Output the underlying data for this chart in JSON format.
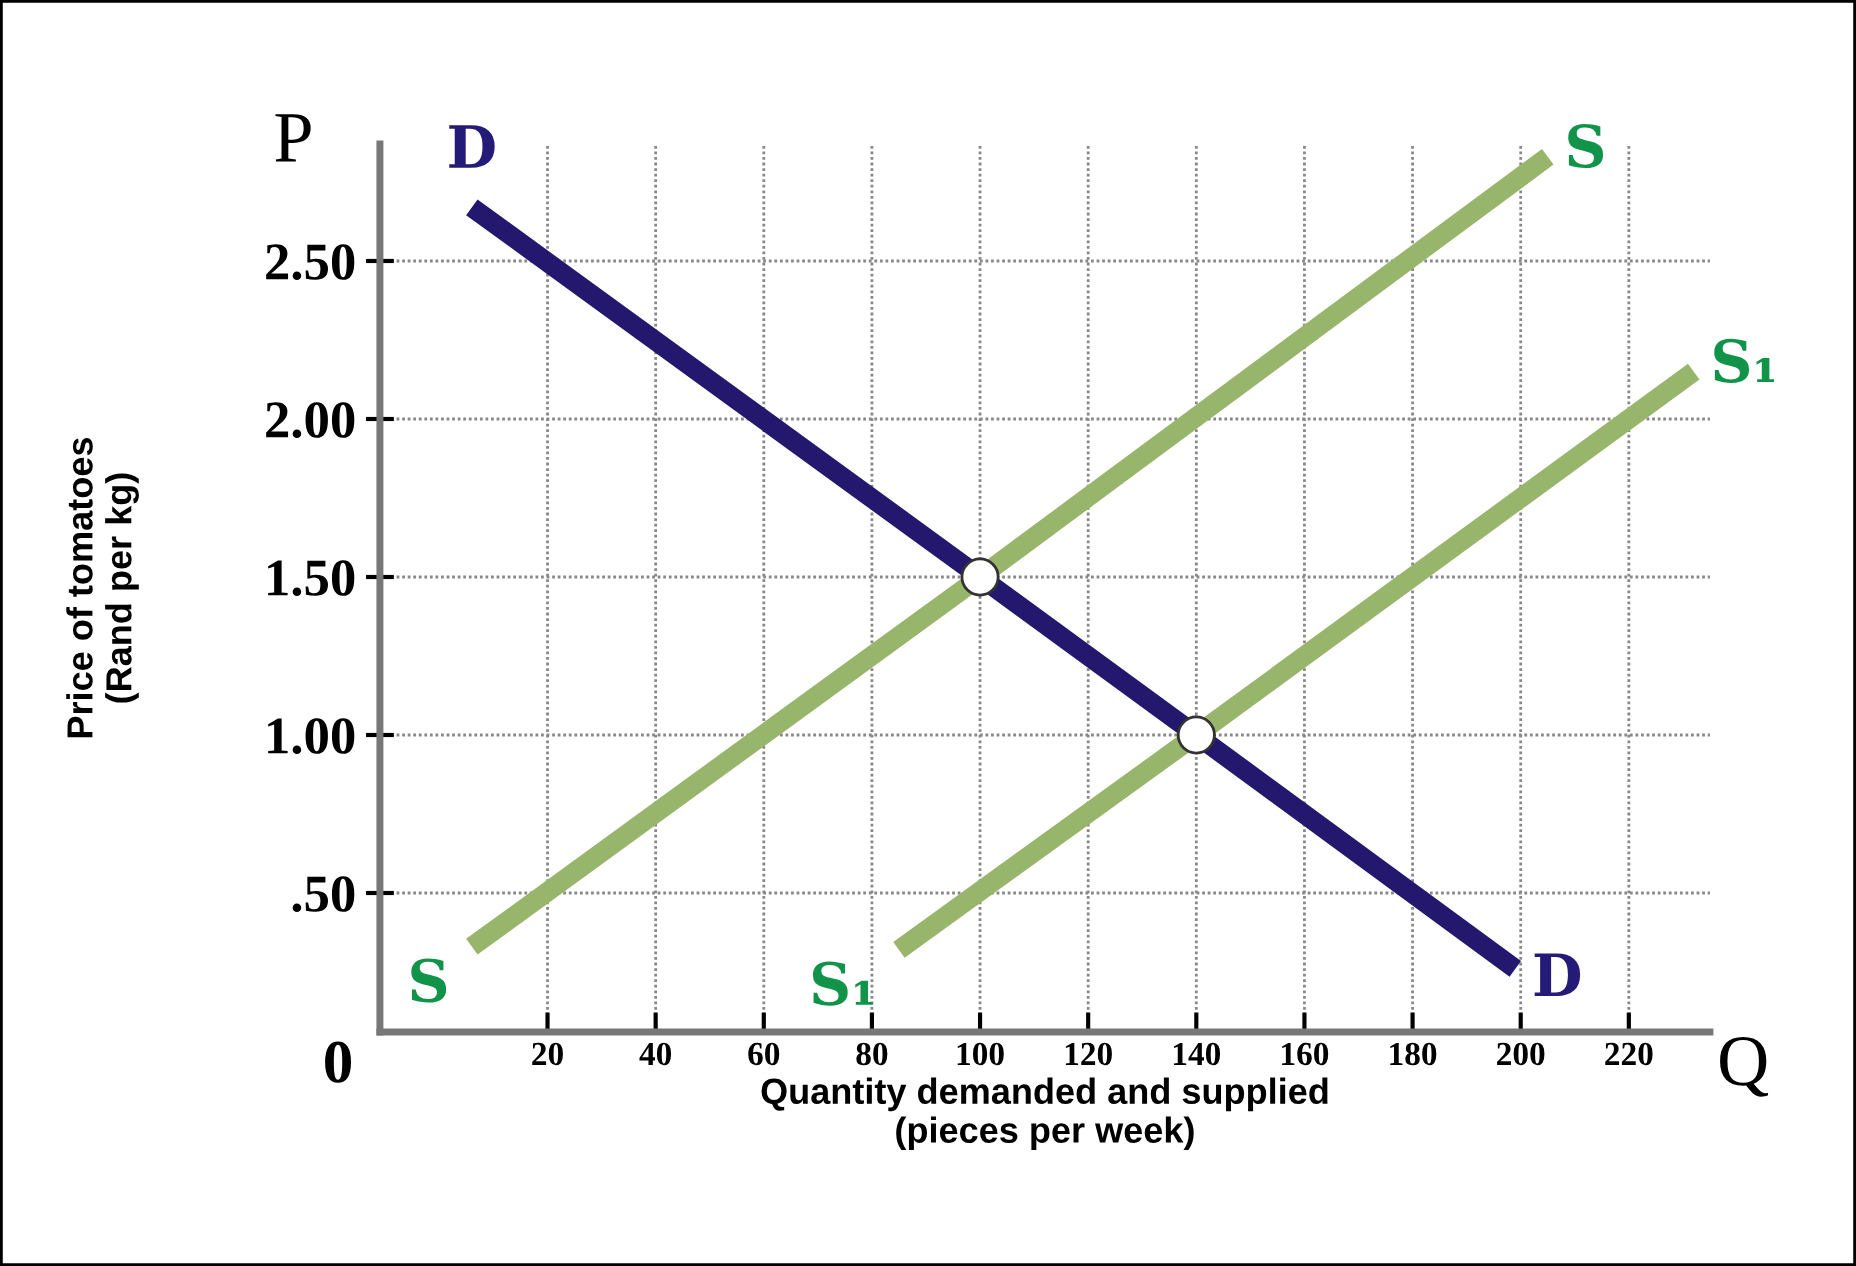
{
  "chart_data": {
    "type": "line",
    "xlabel": "Quantity demanded and supplied\n(pieces per week)",
    "ylabel": "Price of tomatoes\n(Rand per kg)",
    "annotations": [
      "P",
      "Q",
      "0"
    ],
    "xlim": [
      -11,
      235
    ],
    "ylim": [
      0.06,
      2.87
    ],
    "xticks": [
      20,
      40,
      60,
      80,
      100,
      120,
      140,
      160,
      180,
      200,
      220
    ],
    "yticks": [
      {
        "value": 0.5,
        "label": ".50"
      },
      {
        "value": 1.0,
        "label": "1.00"
      },
      {
        "value": 1.5,
        "label": "1.50"
      },
      {
        "value": 2.0,
        "label": "2.00"
      },
      {
        "value": 2.5,
        "label": "2.50"
      }
    ],
    "grid": true,
    "line_style": "solid",
    "series": [
      {
        "name": "D",
        "color": "#23176e",
        "x": [
          6,
          100,
          140,
          199
        ],
        "values": [
          2.67,
          1.5,
          1.0,
          0.26
        ]
      },
      {
        "name": "S",
        "color": "#97b56b",
        "x": [
          6,
          100,
          205
        ],
        "values": [
          0.33,
          1.5,
          2.83
        ]
      },
      {
        "name": "S₁",
        "color": "#97b56b",
        "x": [
          85,
          140,
          232
        ],
        "values": [
          0.32,
          1.0,
          2.15
        ]
      },
      {
        "type": "scatter",
        "marker": "circle",
        "color": "#ffffff",
        "x": [
          100,
          140
        ],
        "values": [
          1.5,
          1.0
        ]
      }
    ]
  }
}
